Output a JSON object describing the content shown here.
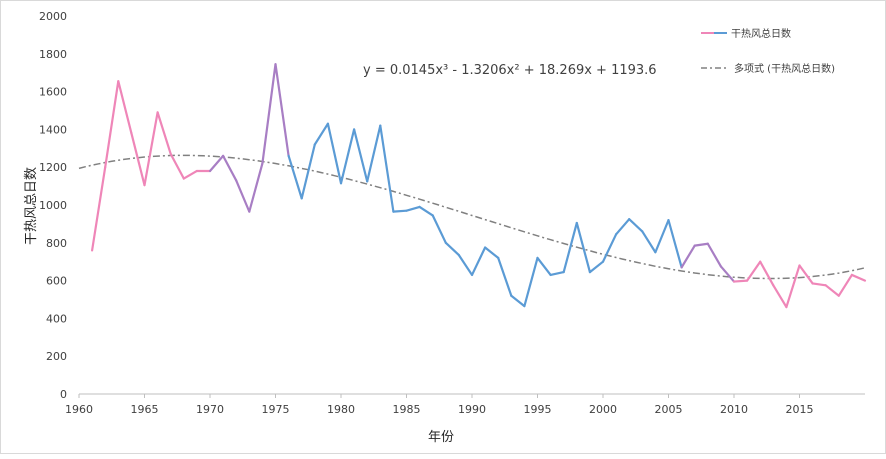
{
  "chart_data": {
    "type": "line",
    "xlabel": "年份",
    "ylabel": "干热风总日数",
    "xlim": [
      1960,
      2020
    ],
    "ylim": [
      0,
      2000
    ],
    "x_ticks": [
      "1960",
      "1965",
      "1970",
      "1975",
      "1980",
      "1985",
      "1990",
      "1995",
      "2000",
      "2005",
      "2010",
      "2015"
    ],
    "y_ticks": [
      "0",
      "200",
      "400",
      "600",
      "800",
      "1000",
      "1200",
      "1400",
      "1600",
      "1800",
      "2000"
    ],
    "grid": false,
    "legend_position": "top-right",
    "equation": "y = 0.0145x³ - 1.3206x² + 18.269x + 1193.6",
    "series": [
      {
        "name": "干热风总日数",
        "segment_colors": [
          "#ef86b8",
          "#a87ec4",
          "#5b9bd5"
        ],
        "x": [
          1961,
          1962,
          1963,
          1964,
          1965,
          1966,
          1967,
          1968,
          1969,
          1970,
          1971,
          1972,
          1973,
          1974,
          1975,
          1976,
          1977,
          1978,
          1979,
          1980,
          1981,
          1982,
          1983,
          1984,
          1985,
          1986,
          1987,
          1988,
          1989,
          1990,
          1991,
          1992,
          1993,
          1994,
          1995,
          1996,
          1997,
          1998,
          1999,
          2000,
          2001,
          2002,
          2003,
          2004,
          2005,
          2006,
          2007,
          2008,
          2009,
          2010,
          2011,
          2012,
          2013,
          2014,
          2015,
          2016,
          2017,
          2018,
          2019,
          2020
        ],
        "values": [
          760,
          1200,
          1655,
          1380,
          1105,
          1490,
          1270,
          1140,
          1180,
          1180,
          1260,
          1130,
          965,
          1220,
          1745,
          1260,
          1035,
          1320,
          1430,
          1115,
          1400,
          1125,
          1420,
          965,
          970,
          990,
          945,
          800,
          735,
          630,
          775,
          720,
          520,
          465,
          720,
          630,
          645,
          905,
          645,
          700,
          845,
          925,
          860,
          750,
          920,
          670,
          785,
          795,
          675,
          595,
          600,
          700,
          575,
          460,
          680,
          585,
          575,
          520,
          630,
          600
        ]
      },
      {
        "name": "多项式 (干热风总日数)",
        "color": "#808080",
        "coefficients": [
          0.0145,
          -1.3206,
          18.269,
          1193.6
        ],
        "x_start": 1960
      }
    ]
  }
}
